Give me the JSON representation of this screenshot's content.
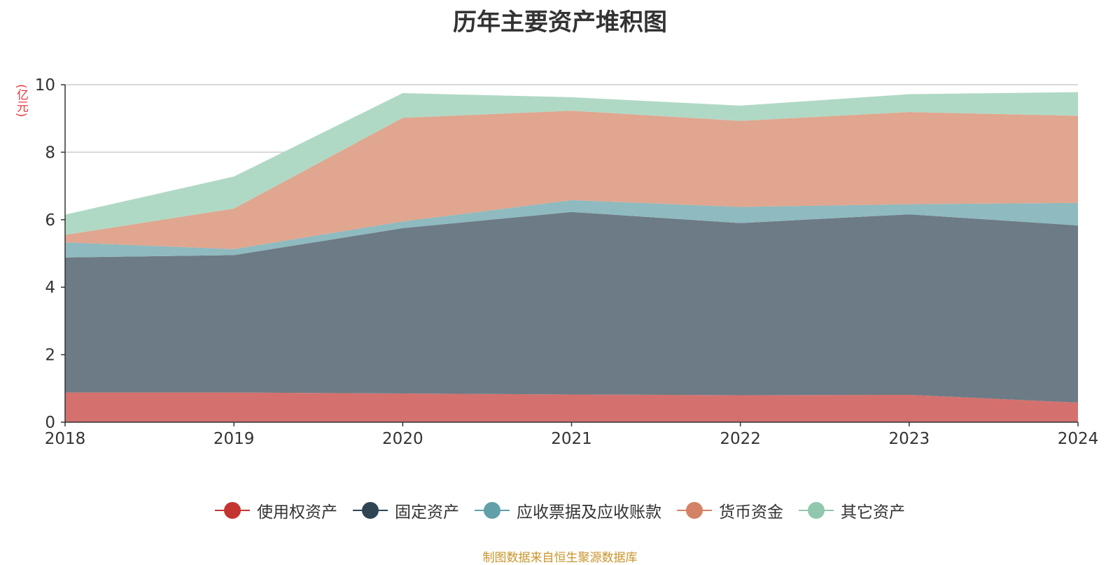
{
  "chart_data": {
    "type": "area",
    "stacked": true,
    "title": "历年主要资产堆积图",
    "unit_label": "(亿元)",
    "x": [
      "2018",
      "2019",
      "2020",
      "2021",
      "2022",
      "2023",
      "2024"
    ],
    "ylim": [
      0,
      10
    ],
    "yticks": [
      "0",
      "2",
      "4",
      "6",
      "8",
      "10"
    ],
    "grid": true,
    "legend_position": "bottom",
    "series": [
      {
        "name": "使用权资产",
        "color": "#c23531",
        "fill": "#d4716e",
        "values": [
          0.88,
          0.88,
          0.85,
          0.82,
          0.8,
          0.81,
          0.58
        ]
      },
      {
        "name": "固定资产",
        "color": "#2f4554",
        "fill": "#6d7b86",
        "values": [
          4.0,
          4.07,
          4.9,
          5.41,
          5.1,
          5.35,
          5.25
        ]
      },
      {
        "name": "应收票据及应收账款",
        "color": "#61a0a8",
        "fill": "#8fbabf",
        "values": [
          0.45,
          0.18,
          0.2,
          0.35,
          0.48,
          0.3,
          0.67
        ]
      },
      {
        "name": "货币资金",
        "color": "#d48265",
        "fill": "#e0a68f",
        "values": [
          0.22,
          1.2,
          3.07,
          2.65,
          2.55,
          2.73,
          2.58
        ]
      },
      {
        "name": "其它资产",
        "color": "#91c7ae",
        "fill": "#b0d9c5",
        "values": [
          0.6,
          0.95,
          0.73,
          0.4,
          0.45,
          0.53,
          0.7
        ]
      }
    ]
  },
  "source": "制图数据来自恒生聚源数据库"
}
